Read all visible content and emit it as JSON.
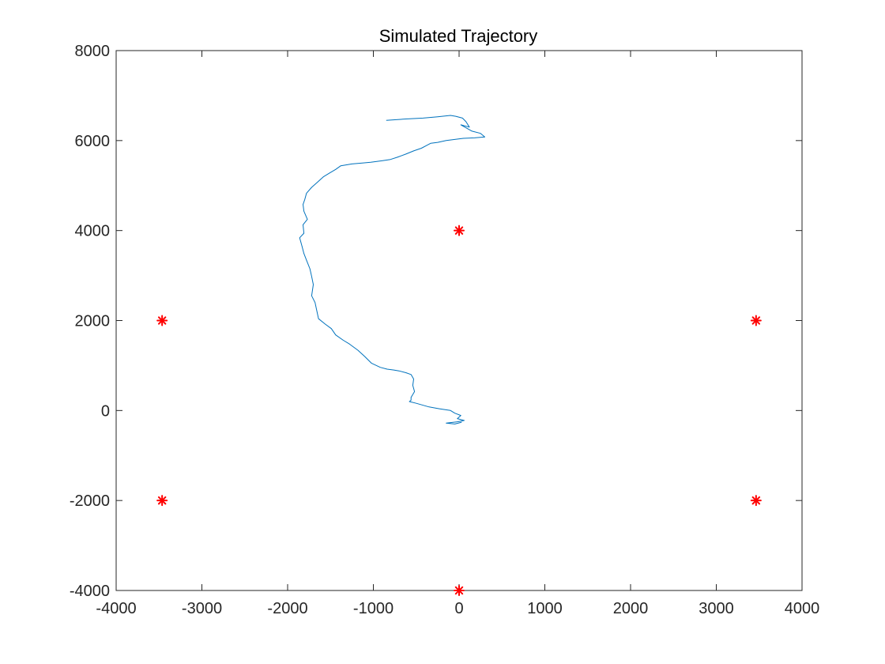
{
  "chart_data": {
    "type": "line",
    "title": "Simulated Trajectory",
    "xlabel": "",
    "ylabel": "",
    "xlim": [
      -4000,
      4000
    ],
    "ylim": [
      -4000,
      8000
    ],
    "xticks": [
      -4000,
      -3000,
      -2000,
      -1000,
      0,
      1000,
      2000,
      3000,
      4000
    ],
    "yticks": [
      -4000,
      -2000,
      0,
      2000,
      4000,
      6000,
      8000
    ],
    "xtick_labels": [
      "-4000",
      "-3000",
      "-2000",
      "-1000",
      "0",
      "1000",
      "2000",
      "3000",
      "4000"
    ],
    "ytick_labels": [
      "-4000",
      "-2000",
      "0",
      "2000",
      "4000",
      "6000",
      "8000"
    ],
    "grid": false,
    "series": [
      {
        "kind": "line",
        "color": "#0072BD",
        "x": [
          -850,
          -620,
          -420,
          -250,
          -100,
          -40,
          40,
          80,
          120,
          20,
          150,
          250,
          300,
          180,
          50,
          -150,
          -250,
          -330,
          -380,
          -440,
          -530,
          -620,
          -720,
          -800,
          -900,
          -1030,
          -1130,
          -1250,
          -1380,
          -1440,
          -1510,
          -1580,
          -1660,
          -1720,
          -1780,
          -1800,
          -1820,
          -1810,
          -1770,
          -1820,
          -1810,
          -1860,
          -1830,
          -1810,
          -1780,
          -1740,
          -1720,
          -1700,
          -1720,
          -1680,
          -1660,
          -1640,
          -1560,
          -1490,
          -1440,
          -1350,
          -1280,
          -1180,
          -1100,
          -1020,
          -920,
          -840,
          -760,
          -700,
          -620,
          -560,
          -530,
          -540,
          -520,
          -560,
          -560,
          -580,
          -500,
          -350,
          -230,
          -100,
          -50,
          20,
          -20,
          60,
          -20,
          -150,
          -50,
          30
        ],
        "y": [
          6450,
          6480,
          6500,
          6530,
          6560,
          6540,
          6500,
          6420,
          6300,
          6350,
          6210,
          6160,
          6080,
          6060,
          6050,
          6000,
          5960,
          5940,
          5890,
          5830,
          5770,
          5700,
          5630,
          5580,
          5550,
          5520,
          5500,
          5480,
          5440,
          5360,
          5280,
          5200,
          5060,
          4960,
          4830,
          4690,
          4580,
          4430,
          4250,
          4130,
          3940,
          3840,
          3640,
          3490,
          3340,
          3150,
          2980,
          2800,
          2550,
          2400,
          2220,
          2040,
          1920,
          1820,
          1680,
          1560,
          1480,
          1340,
          1200,
          1050,
          960,
          920,
          900,
          880,
          840,
          800,
          700,
          560,
          420,
          290,
          230,
          200,
          160,
          80,
          40,
          0,
          -60,
          -110,
          -180,
          -220,
          -250,
          -280,
          -300,
          -260
        ]
      },
      {
        "kind": "markers",
        "marker": "*",
        "color": "#FF0000",
        "x": [
          0,
          -3464,
          3464,
          -3464,
          3464,
          0
        ],
        "y": [
          4000,
          2000,
          2000,
          -2000,
          -2000,
          -4000
        ]
      }
    ]
  }
}
